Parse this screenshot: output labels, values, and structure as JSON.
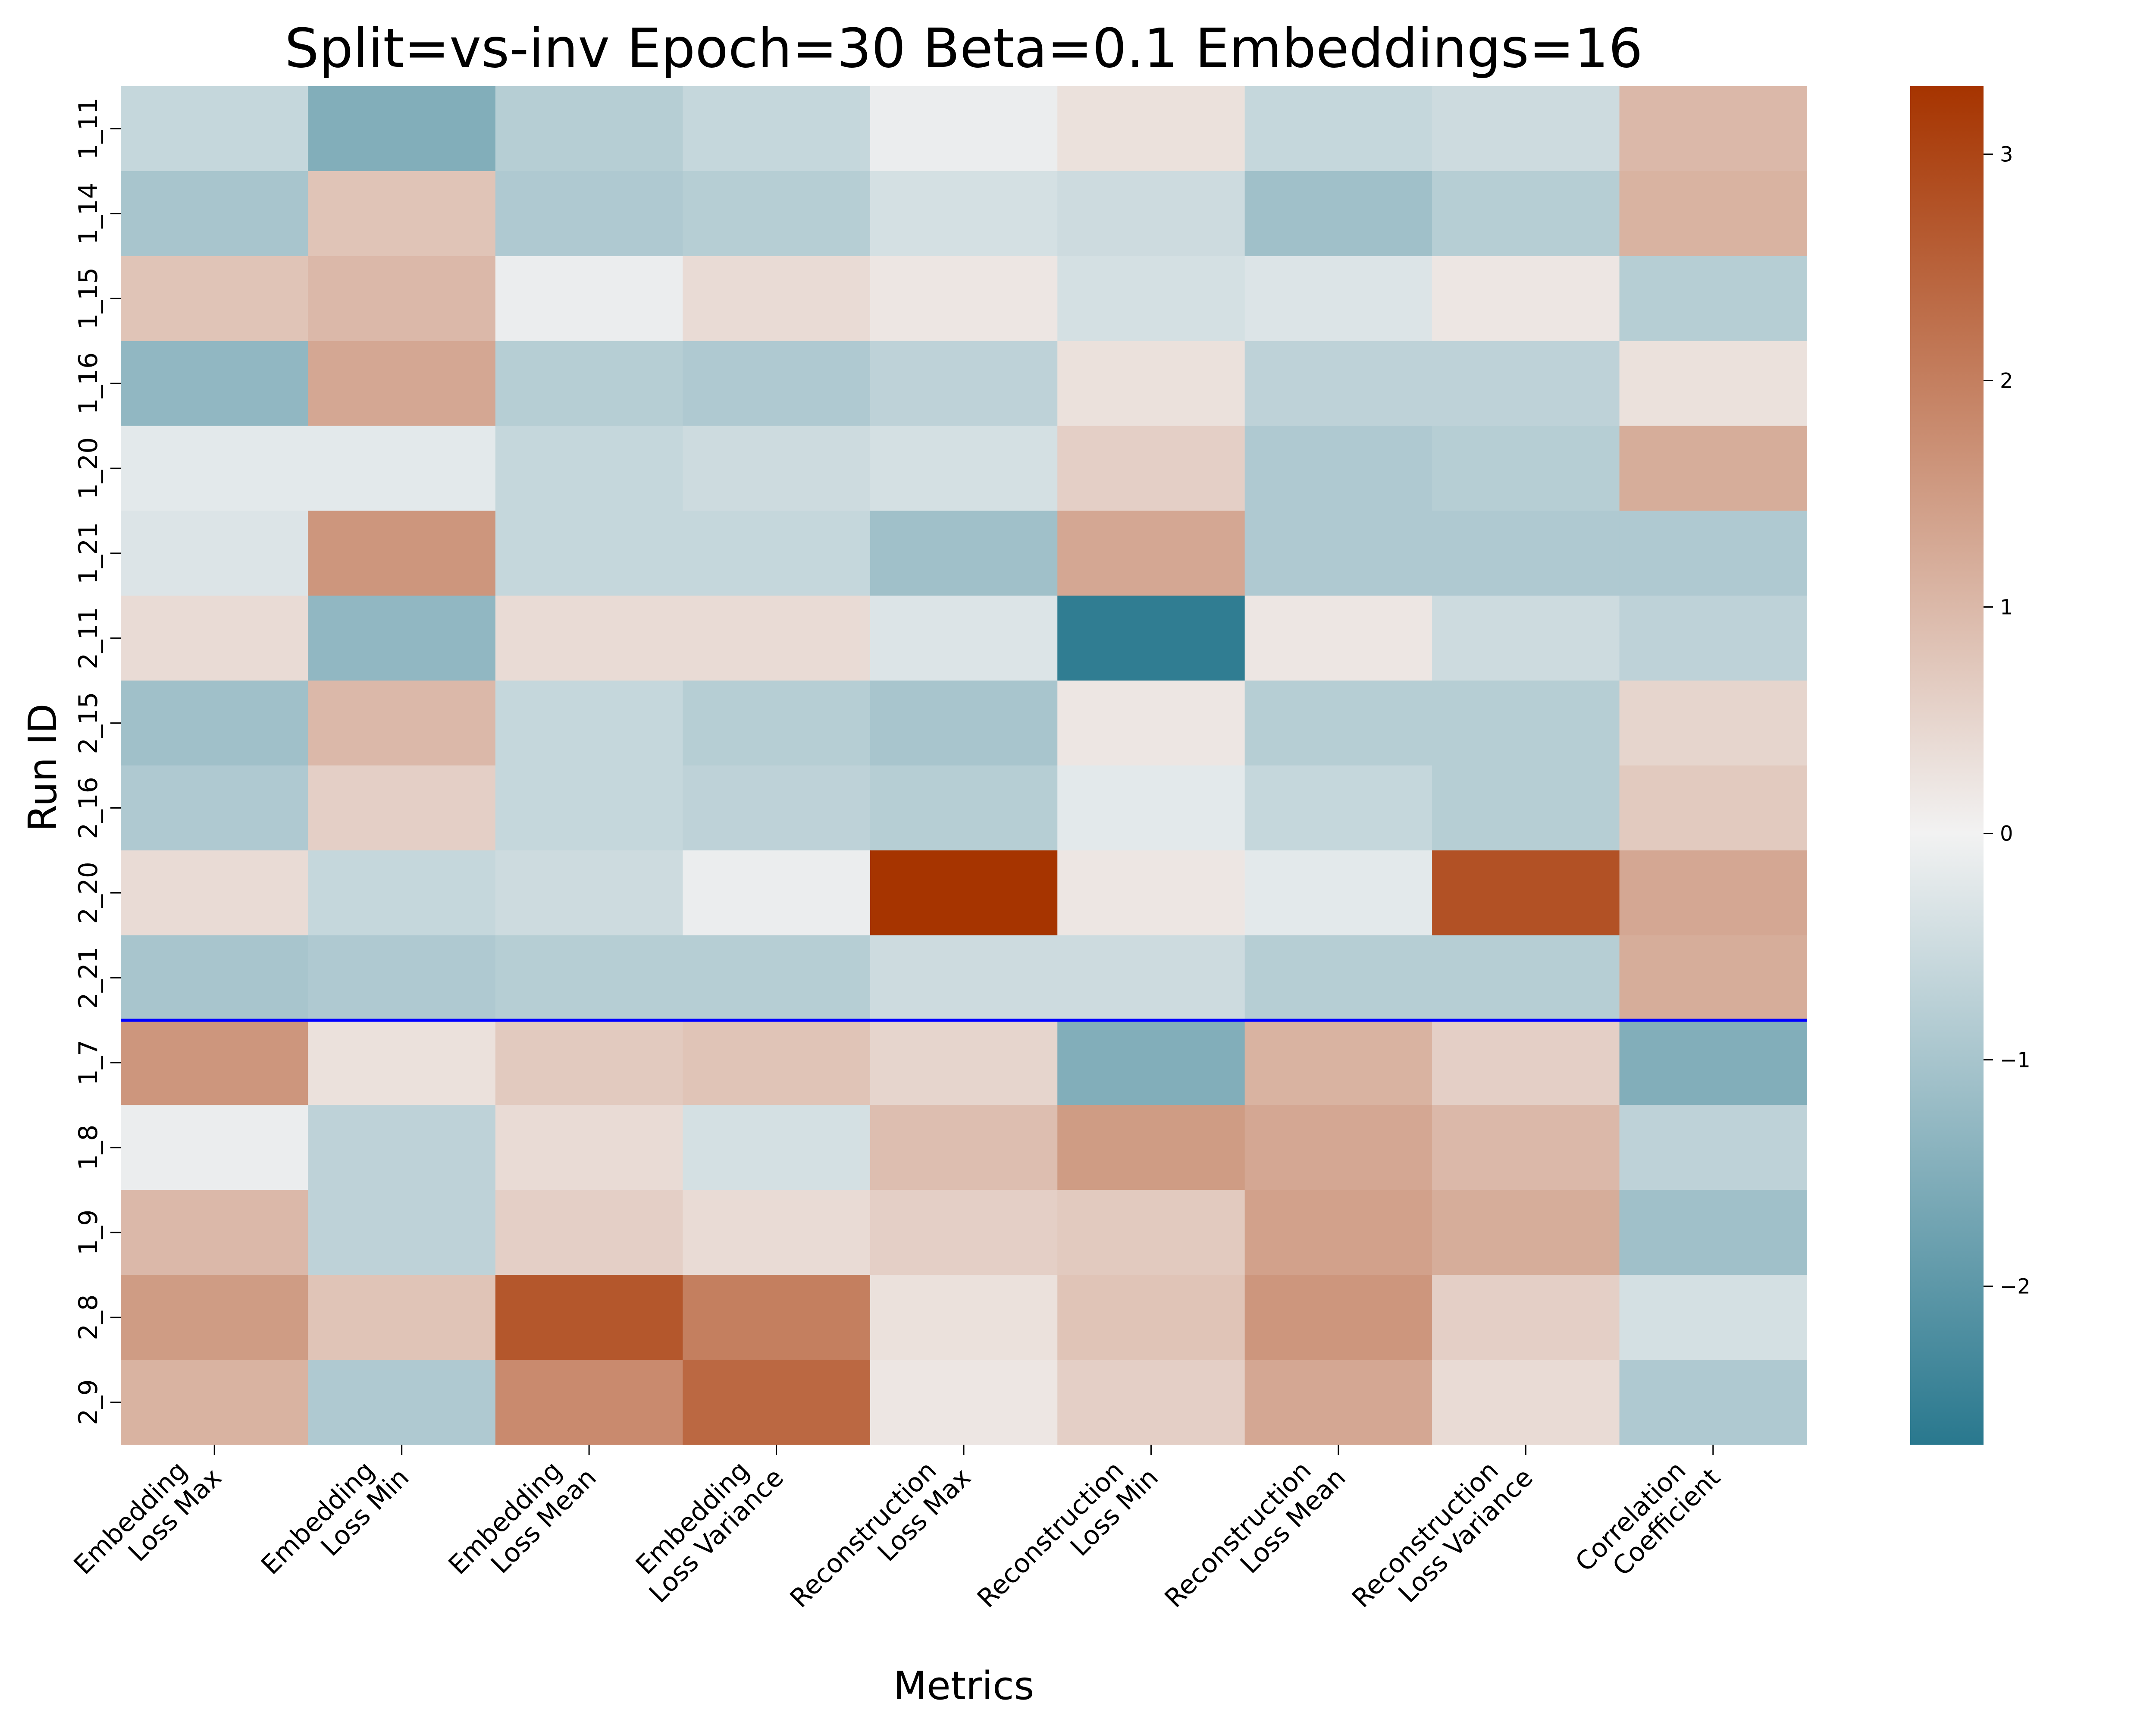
{
  "chart_data": {
    "type": "heatmap",
    "title": "Split=vs-inv Epoch=30 Beta=0.1 Embeddings=16",
    "xlabel": "Metrics",
    "ylabel": "Run ID",
    "x_categories": [
      [
        "Embedding",
        "Loss Max"
      ],
      [
        "Embedding",
        "Loss Min"
      ],
      [
        "Embedding",
        "Loss Mean"
      ],
      [
        "Embedding",
        "Loss Variance"
      ],
      [
        "Reconstruction",
        "Loss Max"
      ],
      [
        "Reconstruction",
        "Loss Min"
      ],
      [
        "Reconstruction",
        "Loss Mean"
      ],
      [
        "Reconstruction",
        "Loss Variance"
      ],
      [
        "Correlation",
        "Coefficient"
      ]
    ],
    "y_categories": [
      "1_11",
      "1_14",
      "1_15",
      "1_16",
      "1_20",
      "1_21",
      "2_11",
      "2_15",
      "2_16",
      "2_20",
      "2_21",
      "1_7",
      "1_8",
      "1_9",
      "2_8",
      "2_9"
    ],
    "values": [
      [
        -0.6,
        -1.5,
        -0.8,
        -0.6,
        -0.1,
        0.3,
        -0.6,
        -0.5,
        1.0
      ],
      [
        -1.0,
        0.8,
        -0.9,
        -0.8,
        -0.4,
        -0.5,
        -1.1,
        -0.8,
        1.1
      ],
      [
        0.8,
        1.0,
        -0.1,
        0.4,
        0.2,
        -0.4,
        -0.3,
        0.2,
        -0.8
      ],
      [
        -1.3,
        1.3,
        -0.8,
        -0.9,
        -0.7,
        0.3,
        -0.7,
        -0.7,
        0.3
      ],
      [
        -0.2,
        -0.2,
        -0.6,
        -0.5,
        -0.4,
        0.6,
        -0.9,
        -0.8,
        1.2
      ],
      [
        -0.3,
        1.6,
        -0.6,
        -0.6,
        -1.1,
        1.3,
        -0.9,
        -0.9,
        -0.9
      ],
      [
        0.4,
        -1.3,
        0.4,
        0.4,
        -0.3,
        -2.6,
        0.2,
        -0.5,
        -0.7
      ],
      [
        -1.1,
        1.0,
        -0.6,
        -0.8,
        -1.0,
        0.2,
        -0.8,
        -0.8,
        0.5
      ],
      [
        -0.9,
        0.6,
        -0.6,
        -0.7,
        -0.8,
        -0.2,
        -0.6,
        -0.8,
        0.7
      ],
      [
        0.4,
        -0.6,
        -0.5,
        -0.1,
        3.3,
        0.2,
        -0.2,
        2.8,
        1.3
      ],
      [
        -1.0,
        -0.9,
        -0.8,
        -0.8,
        -0.5,
        -0.5,
        -0.8,
        -0.8,
        1.2
      ],
      [
        1.6,
        0.3,
        0.7,
        0.8,
        0.5,
        -1.5,
        1.1,
        0.6,
        -1.5
      ],
      [
        -0.1,
        -0.7,
        0.4,
        -0.4,
        0.9,
        1.5,
        1.3,
        1.0,
        -0.7
      ],
      [
        1.0,
        -0.7,
        0.6,
        0.4,
        0.6,
        0.7,
        1.4,
        1.2,
        -1.1
      ],
      [
        1.5,
        0.8,
        2.7,
        2.0,
        0.3,
        0.8,
        1.6,
        0.6,
        -0.4
      ],
      [
        1.1,
        -0.9,
        1.8,
        2.4,
        0.2,
        0.6,
        1.3,
        0.4,
        -0.9
      ]
    ],
    "vmin": -2.7,
    "vmax": 3.3,
    "colorbar_ticks": [
      -2,
      -1,
      0,
      1,
      2,
      3
    ],
    "separator_after_row": 11,
    "colors": {
      "low": "#29788E",
      "mid": "#F2F2F2",
      "high": "#A63400",
      "separator": "#0000FF"
    }
  }
}
